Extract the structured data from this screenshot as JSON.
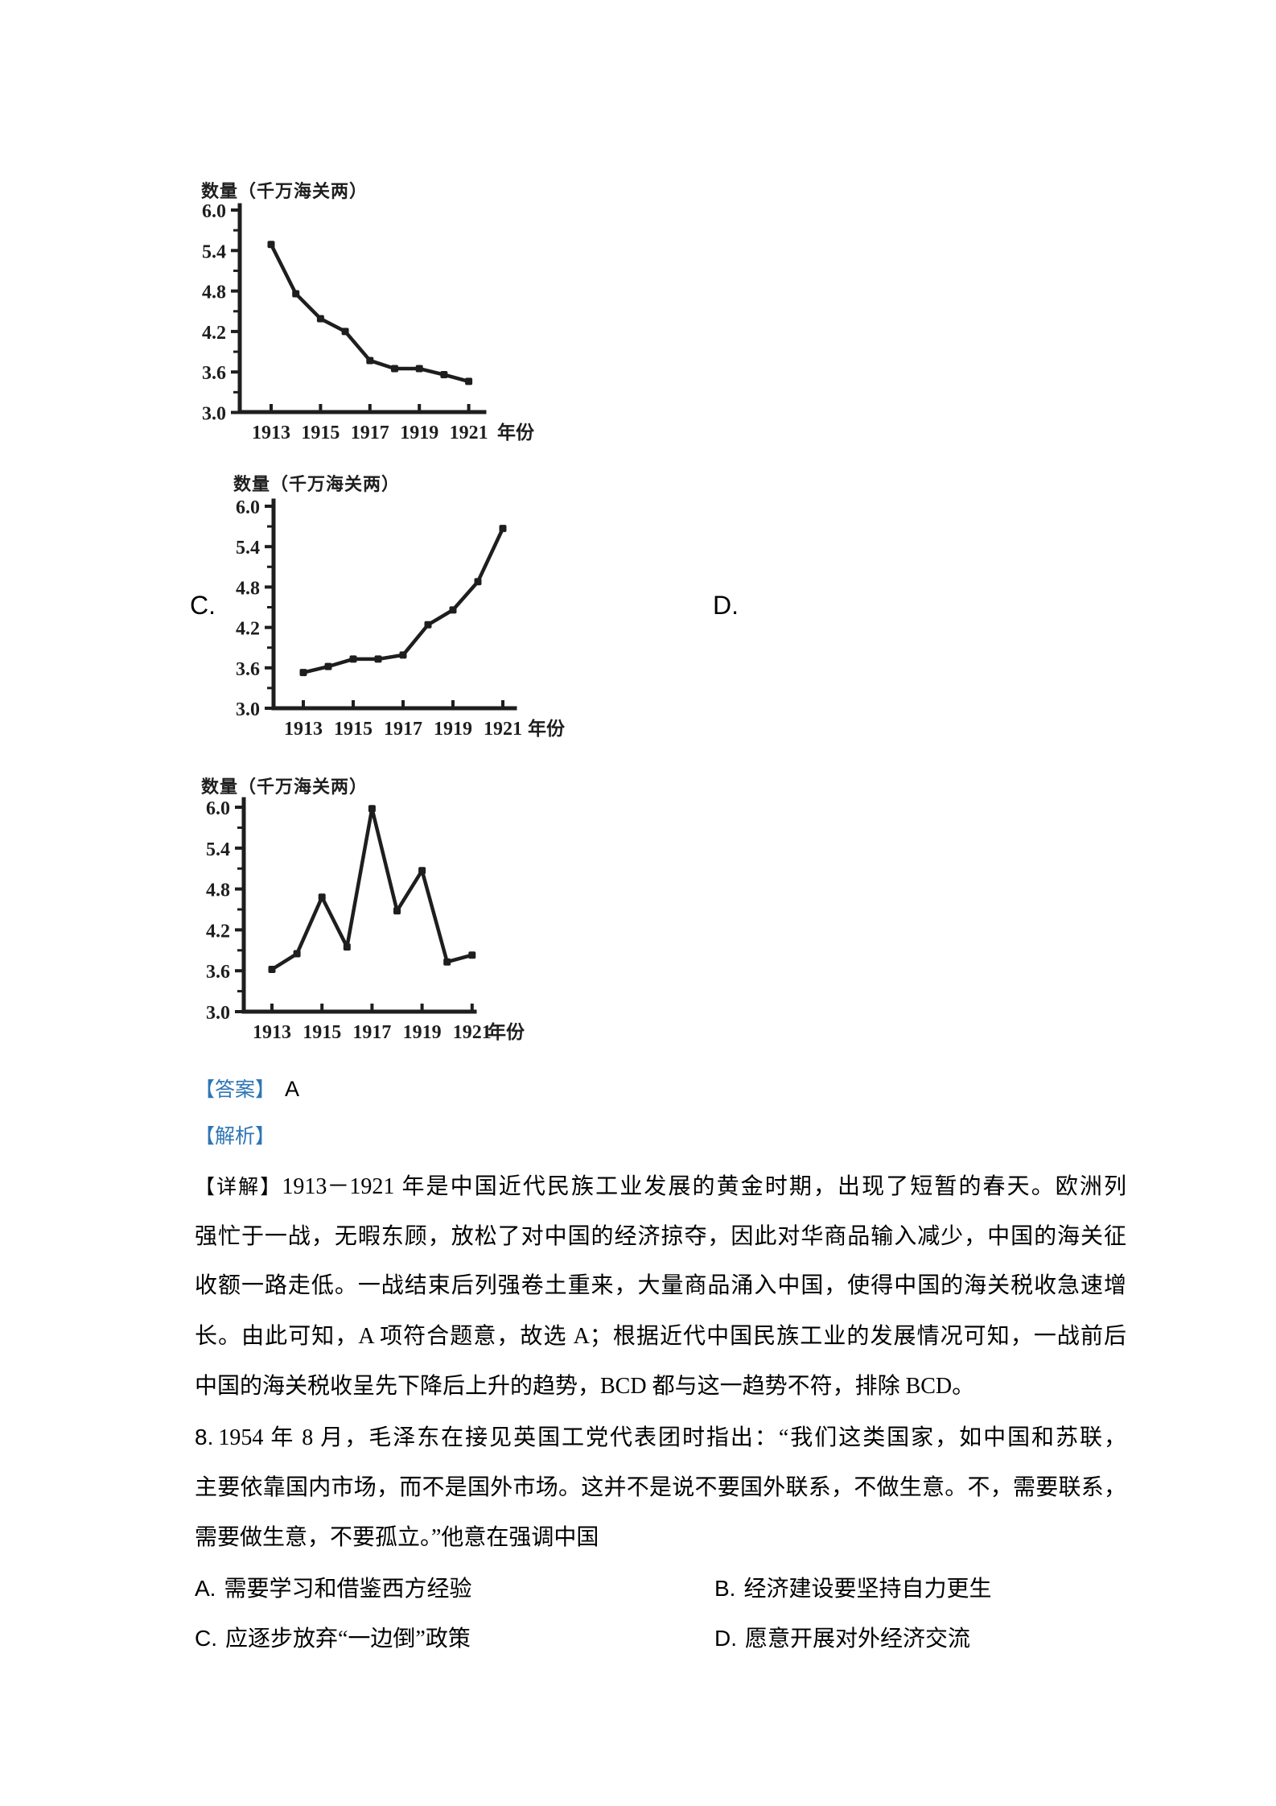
{
  "page": {
    "background": "#ffffff",
    "text_color": "#000000",
    "accent_blue": "#2E75B6",
    "chart_ink": "#1e1e1e"
  },
  "chart_option_labels": [
    {
      "text": "C."
    },
    {
      "text": "D."
    }
  ],
  "chart_data": [
    {
      "type": "line",
      "position": "top",
      "title": "数量（千万海关两）",
      "ylabel": "数量（千万海关两）",
      "xlabel": "年份",
      "x_axis_label": "年份",
      "ylim": [
        3.0,
        6.0
      ],
      "y_ticks": [
        "6.0",
        "5.4",
        "4.8",
        "4.2",
        "3.6",
        "3.0"
      ],
      "x_tick_labels": [
        "1913",
        "1915",
        "1917",
        "1919",
        "1921"
      ],
      "x": [
        1913,
        1914,
        1915,
        1916,
        1917,
        1918,
        1919,
        1920,
        1921
      ],
      "values": [
        5.49,
        4.76,
        4.39,
        4.2,
        3.77,
        3.65,
        3.65,
        3.56,
        3.46
      ]
    },
    {
      "type": "line",
      "position": "middle",
      "title": "数量（千万海关两）",
      "ylabel": "数量（千万海关两）",
      "xlabel": "年份",
      "x_axis_label": "年份",
      "ylim": [
        3.0,
        6.0
      ],
      "y_ticks": [
        "6.0",
        "5.4",
        "4.8",
        "4.2",
        "3.6",
        "3.0"
      ],
      "x_tick_labels": [
        "1913",
        "1915",
        "1917",
        "1919",
        "1921"
      ],
      "x": [
        1913,
        1914,
        1915,
        1916,
        1917,
        1918,
        1919,
        1920,
        1921
      ],
      "values": [
        3.53,
        3.62,
        3.73,
        3.73,
        3.79,
        4.24,
        4.46,
        4.88,
        5.67
      ]
    },
    {
      "type": "line",
      "position": "bottom",
      "title": "数量（千万海关两）",
      "ylabel": "数量（千万海关两）",
      "xlabel": "年份",
      "x_axis_label": "年份",
      "ylim": [
        3.0,
        6.0
      ],
      "y_ticks": [
        "6.0",
        "5.4",
        "4.8",
        "4.2",
        "3.6",
        "3.0"
      ],
      "x_tick_labels": [
        "1913",
        "1915",
        "1917",
        "1919",
        "1921"
      ],
      "x": [
        1913,
        1914,
        1915,
        1916,
        1917,
        1918,
        1919,
        1920,
        1921
      ],
      "values": [
        3.62,
        3.85,
        4.68,
        3.95,
        5.98,
        4.48,
        5.07,
        3.73,
        3.83
      ]
    }
  ],
  "answer_section": {
    "label": "【答案】",
    "value": "A"
  },
  "analysis_section": {
    "label": "【解析】"
  },
  "detail": {
    "label": "【详解】",
    "lines": [
      "1913－1921 年是中国近代民族工业发展的黄金时期，出现了短暂的春天。欧洲列",
      "强忙于一战，无暇东顾，放松了对中国的经济掠夺，因此对华商品输入减少，中国的海关征",
      "收额一路走低。一战结束后列强卷土重来，大量商品涌入中国，使得中国的海关税收急速增",
      "长。由此可知，A 项符合题意，故选 A；根据近代中国民族工业的发展情况可知，一战前后",
      "中国的海关税收呈先下降后上升的趋势，BCD 都与这一趋势不符，排除 BCD。"
    ]
  },
  "question8": {
    "number": "8.",
    "lines": [
      "1954 年 8 月，毛泽东在接见英国工党代表团时指出：“我们这类国家，如中国和苏联，",
      "主要依靠国内市场，而不是国外市场。这并不是说不要国外联系，不做生意。不，需要联系，",
      "需要做生意，不要孤立。”他意在强调中国"
    ],
    "options": [
      {
        "letter": "A.",
        "text": "需要学习和借鉴西方经验"
      },
      {
        "letter": "B.",
        "text": "经济建设要坚持自力更生"
      },
      {
        "letter": "C.",
        "text": "应逐步放弃“一边倒”政策"
      },
      {
        "letter": "D.",
        "text": "愿意开展对外经济交流"
      }
    ]
  }
}
